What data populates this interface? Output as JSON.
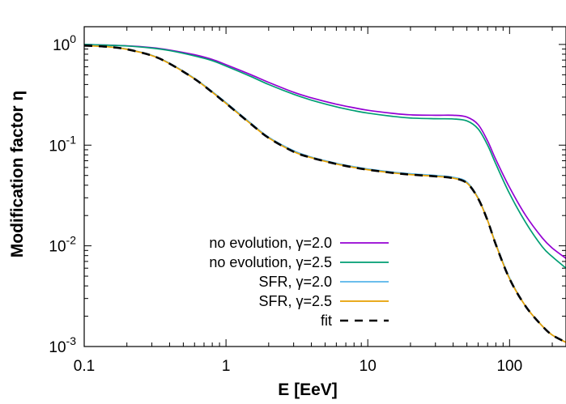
{
  "chart_data": {
    "type": "line",
    "xlabel": "E [EeV]",
    "ylabel": "Modification factor η",
    "xscale": "log",
    "yscale": "log",
    "xlim": [
      0.1,
      250
    ],
    "ylim": [
      0.001,
      1.5
    ],
    "x_ticks": [
      {
        "value": 0.1,
        "label": "0.1"
      },
      {
        "value": 1,
        "label": "1"
      },
      {
        "value": 10,
        "label": "10"
      },
      {
        "value": 100,
        "label": "100"
      }
    ],
    "y_ticks": [
      {
        "value": 1,
        "base": "10",
        "exp": "0"
      },
      {
        "value": 0.1,
        "base": "10",
        "exp": "-1"
      },
      {
        "value": 0.01,
        "base": "10",
        "exp": "-2"
      },
      {
        "value": 0.001,
        "base": "10",
        "exp": "-3"
      }
    ],
    "grid": false,
    "legend_position": "bottom-left",
    "series": [
      {
        "name": "no evolution, γ=2.0",
        "color": "#9400d3",
        "dash": "solid",
        "points": [
          [
            0.1,
            1.0
          ],
          [
            0.2,
            0.97
          ],
          [
            0.3,
            0.93
          ],
          [
            0.4,
            0.88
          ],
          [
            0.6,
            0.79
          ],
          [
            0.8,
            0.71
          ],
          [
            1,
            0.63
          ],
          [
            1.5,
            0.5
          ],
          [
            2,
            0.42
          ],
          [
            3,
            0.335
          ],
          [
            4,
            0.295
          ],
          [
            6,
            0.255
          ],
          [
            8,
            0.235
          ],
          [
            10,
            0.222
          ],
          [
            15,
            0.207
          ],
          [
            20,
            0.2
          ],
          [
            30,
            0.198
          ],
          [
            40,
            0.198
          ],
          [
            50,
            0.19
          ],
          [
            60,
            0.16
          ],
          [
            70,
            0.11
          ],
          [
            80,
            0.072
          ],
          [
            100,
            0.038
          ],
          [
            130,
            0.02
          ],
          [
            170,
            0.012
          ],
          [
            200,
            0.0095
          ],
          [
            250,
            0.0075
          ]
        ]
      },
      {
        "name": "no evolution, γ=2.5",
        "color": "#009e73",
        "dash": "solid",
        "points": [
          [
            0.1,
            1.0
          ],
          [
            0.2,
            0.965
          ],
          [
            0.3,
            0.92
          ],
          [
            0.4,
            0.87
          ],
          [
            0.6,
            0.77
          ],
          [
            0.8,
            0.69
          ],
          [
            1,
            0.61
          ],
          [
            1.5,
            0.48
          ],
          [
            2,
            0.4
          ],
          [
            3,
            0.32
          ],
          [
            4,
            0.28
          ],
          [
            6,
            0.24
          ],
          [
            8,
            0.22
          ],
          [
            10,
            0.208
          ],
          [
            15,
            0.193
          ],
          [
            20,
            0.186
          ],
          [
            30,
            0.183
          ],
          [
            40,
            0.182
          ],
          [
            50,
            0.174
          ],
          [
            60,
            0.145
          ],
          [
            70,
            0.1
          ],
          [
            80,
            0.065
          ],
          [
            100,
            0.033
          ],
          [
            130,
            0.017
          ],
          [
            170,
            0.0098
          ],
          [
            200,
            0.0078
          ],
          [
            250,
            0.006
          ]
        ]
      },
      {
        "name": "SFR, γ=2.0",
        "color": "#56b4e9",
        "dash": "solid",
        "points": [
          [
            0.1,
            0.98
          ],
          [
            0.15,
            0.95
          ],
          [
            0.2,
            0.9
          ],
          [
            0.3,
            0.78
          ],
          [
            0.4,
            0.65
          ],
          [
            0.6,
            0.46
          ],
          [
            0.8,
            0.34
          ],
          [
            1,
            0.265
          ],
          [
            1.5,
            0.165
          ],
          [
            2,
            0.12
          ],
          [
            3,
            0.088
          ],
          [
            4,
            0.076
          ],
          [
            6,
            0.066
          ],
          [
            8,
            0.061
          ],
          [
            10,
            0.058
          ],
          [
            15,
            0.054
          ],
          [
            20,
            0.052
          ],
          [
            30,
            0.05
          ],
          [
            40,
            0.048
          ],
          [
            50,
            0.043
          ],
          [
            60,
            0.03
          ],
          [
            70,
            0.018
          ],
          [
            80,
            0.0105
          ],
          [
            100,
            0.0048
          ],
          [
            130,
            0.0025
          ],
          [
            170,
            0.0016
          ],
          [
            200,
            0.0013
          ],
          [
            250,
            0.0011
          ]
        ]
      },
      {
        "name": "SFR, γ=2.5",
        "color": "#e69f00",
        "dash": "solid",
        "points": [
          [
            0.1,
            0.975
          ],
          [
            0.15,
            0.945
          ],
          [
            0.2,
            0.895
          ],
          [
            0.3,
            0.775
          ],
          [
            0.4,
            0.645
          ],
          [
            0.6,
            0.455
          ],
          [
            0.8,
            0.335
          ],
          [
            1,
            0.26
          ],
          [
            1.5,
            0.162
          ],
          [
            2,
            0.118
          ],
          [
            3,
            0.086
          ],
          [
            4,
            0.075
          ],
          [
            6,
            0.065
          ],
          [
            8,
            0.06
          ],
          [
            10,
            0.057
          ],
          [
            15,
            0.053
          ],
          [
            20,
            0.051
          ],
          [
            30,
            0.049
          ],
          [
            40,
            0.047
          ],
          [
            50,
            0.042
          ],
          [
            60,
            0.0295
          ],
          [
            70,
            0.0178
          ],
          [
            80,
            0.0103
          ],
          [
            100,
            0.0047
          ],
          [
            130,
            0.0025
          ],
          [
            170,
            0.0016
          ],
          [
            200,
            0.0013
          ],
          [
            250,
            0.0011
          ]
        ]
      },
      {
        "name": "fit",
        "color": "#000000",
        "dash": "dashed",
        "points": [
          [
            0.1,
            0.975
          ],
          [
            0.15,
            0.945
          ],
          [
            0.2,
            0.895
          ],
          [
            0.3,
            0.775
          ],
          [
            0.4,
            0.645
          ],
          [
            0.6,
            0.455
          ],
          [
            0.8,
            0.335
          ],
          [
            1,
            0.26
          ],
          [
            1.5,
            0.162
          ],
          [
            2,
            0.118
          ],
          [
            3,
            0.086
          ],
          [
            4,
            0.075
          ],
          [
            6,
            0.065
          ],
          [
            8,
            0.06
          ],
          [
            10,
            0.057
          ],
          [
            15,
            0.053
          ],
          [
            20,
            0.051
          ],
          [
            30,
            0.049
          ],
          [
            40,
            0.047
          ],
          [
            50,
            0.042
          ],
          [
            60,
            0.0295
          ],
          [
            70,
            0.0178
          ],
          [
            80,
            0.0103
          ],
          [
            100,
            0.0047
          ],
          [
            130,
            0.0025
          ],
          [
            170,
            0.0016
          ],
          [
            200,
            0.0013
          ],
          [
            250,
            0.0011
          ]
        ]
      }
    ]
  }
}
